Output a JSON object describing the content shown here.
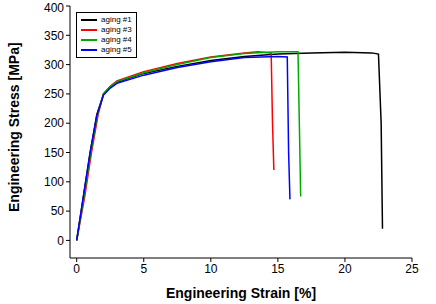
{
  "chart_data": {
    "type": "line",
    "x_label": "Engineering Strain [%]",
    "y_label": "Engineering Stress [MPa]",
    "xlim": [
      -0.5,
      25
    ],
    "xticks": [
      0,
      5,
      10,
      15,
      20,
      25
    ],
    "ylim": [
      -30,
      400
    ],
    "yticks": [
      0,
      50,
      100,
      150,
      200,
      250,
      300,
      350,
      400
    ],
    "legend": "upper left",
    "grid": false,
    "series": [
      {
        "name": "aging #1",
        "color": "#000000",
        "x": [
          0,
          0.5,
          1,
          1.5,
          2,
          2.5,
          3,
          5,
          7.5,
          10,
          12.5,
          15,
          17.5,
          20,
          22,
          22.5,
          22.7,
          22.8
        ],
        "values": [
          0,
          75,
          150,
          215,
          250,
          262,
          270,
          285,
          297,
          307,
          314,
          318,
          320,
          321,
          320,
          318,
          200,
          20
        ]
      },
      {
        "name": "aging #3",
        "color": "#ff0000",
        "x": [
          0,
          0.6,
          1.1,
          1.6,
          2,
          2.5,
          3,
          5,
          7.5,
          10,
          12.5,
          13.5,
          14.5,
          14.6,
          14.7
        ],
        "values": [
          0,
          75,
          150,
          215,
          250,
          263,
          272,
          288,
          302,
          313,
          320,
          322,
          320,
          200,
          120
        ]
      },
      {
        "name": "aging #4",
        "color": "#00aa00",
        "x": [
          0,
          0.55,
          1.05,
          1.55,
          2,
          2.5,
          3,
          5,
          7.5,
          10,
          12.5,
          15,
          16.5,
          16.6,
          16.7
        ],
        "values": [
          0,
          75,
          150,
          215,
          250,
          262,
          271,
          286,
          300,
          312,
          319,
          322,
          322,
          200,
          75
        ]
      },
      {
        "name": "aging #5",
        "color": "#0000ff",
        "x": [
          0,
          0.5,
          1,
          1.5,
          2,
          2.5,
          3,
          5,
          7.5,
          10,
          12.5,
          15,
          15.7,
          15.8,
          15.9
        ],
        "values": [
          0,
          75,
          150,
          213,
          248,
          260,
          268,
          282,
          295,
          305,
          312,
          314,
          313,
          150,
          70
        ]
      }
    ]
  }
}
